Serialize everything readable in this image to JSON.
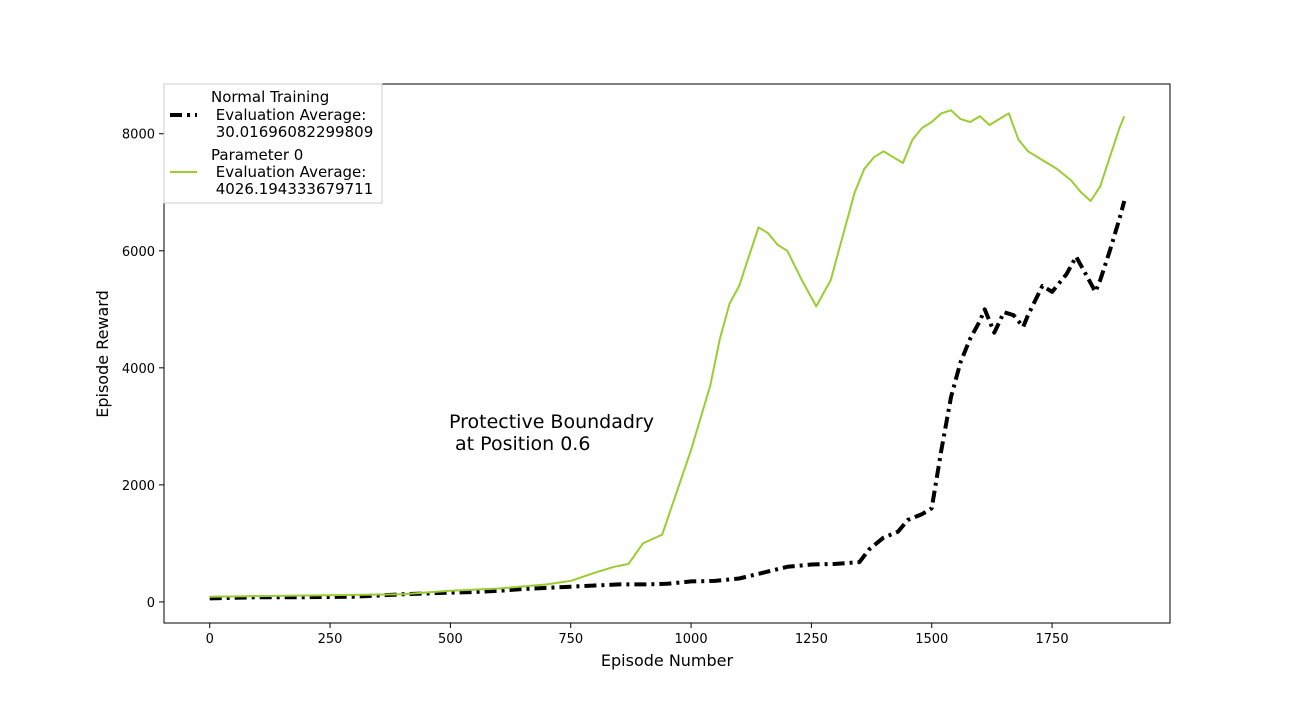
{
  "chart_data": {
    "type": "line",
    "xlabel": "Episode Number",
    "ylabel": "Episode Reward",
    "xlim": [
      -95,
      1995
    ],
    "ylim": [
      -360,
      8850
    ],
    "xticks": [
      0,
      250,
      500,
      750,
      1000,
      1250,
      1500,
      1750
    ],
    "yticks": [
      0,
      2000,
      4000,
      6000,
      8000
    ],
    "grid": false,
    "legend_position": "top-left",
    "annotation": {
      "lines": [
        "Protective Boundadry",
        " at Position 0.6"
      ],
      "x": 500,
      "y": 2650
    },
    "series": [
      {
        "name": "Normal Training\n Evaluation Average:\n 30.01696082299809",
        "legend_lines": [
          "Normal Training",
          " Evaluation Average:",
          " 30.01696082299809"
        ],
        "color": "#000000",
        "style": "dashdot",
        "x": [
          0,
          100,
          200,
          300,
          400,
          500,
          550,
          600,
          650,
          700,
          750,
          800,
          850,
          900,
          950,
          1000,
          1050,
          1100,
          1150,
          1200,
          1250,
          1300,
          1350,
          1370,
          1400,
          1430,
          1450,
          1480,
          1500,
          1520,
          1540,
          1560,
          1580,
          1600,
          1610,
          1630,
          1650,
          1670,
          1690,
          1700,
          1730,
          1750,
          1780,
          1800,
          1820,
          1840,
          1850,
          1870,
          1890,
          1900
        ],
        "y": [
          60,
          80,
          80,
          90,
          130,
          160,
          170,
          190,
          220,
          240,
          260,
          280,
          300,
          300,
          310,
          350,
          360,
          400,
          500,
          600,
          640,
          650,
          680,
          900,
          1100,
          1200,
          1400,
          1500,
          1600,
          2600,
          3500,
          4100,
          4500,
          4800,
          5000,
          4600,
          4950,
          4900,
          4700,
          4900,
          5400,
          5300,
          5600,
          5900,
          5600,
          5300,
          5500,
          6000,
          6550,
          6850
        ]
      },
      {
        "name": "Parameter 0\n Evaluation Average:\n 4026.194333679711",
        "legend_lines": [
          "Parameter 0",
          " Evaluation Average:",
          " 4026.194333679711"
        ],
        "color": "#9acd32",
        "style": "solid",
        "x": [
          0,
          100,
          200,
          300,
          400,
          500,
          600,
          700,
          750,
          800,
          840,
          870,
          900,
          940,
          1000,
          1040,
          1060,
          1080,
          1100,
          1120,
          1140,
          1160,
          1180,
          1200,
          1230,
          1260,
          1290,
          1320,
          1340,
          1360,
          1380,
          1400,
          1420,
          1440,
          1460,
          1480,
          1500,
          1520,
          1540,
          1560,
          1580,
          1600,
          1620,
          1640,
          1660,
          1680,
          1700,
          1730,
          1760,
          1790,
          1810,
          1830,
          1850,
          1870,
          1890,
          1900
        ],
        "y": [
          90,
          100,
          110,
          120,
          130,
          190,
          230,
          300,
          360,
          500,
          600,
          650,
          1000,
          1150,
          2600,
          3700,
          4500,
          5100,
          5400,
          5900,
          6400,
          6300,
          6100,
          6000,
          5500,
          5050,
          5500,
          6400,
          7000,
          7400,
          7600,
          7700,
          7600,
          7500,
          7900,
          8100,
          8200,
          8350,
          8400,
          8250,
          8200,
          8300,
          8150,
          8250,
          8350,
          7900,
          7700,
          7550,
          7400,
          7200,
          7000,
          6850,
          7100,
          7600,
          8100,
          8300
        ]
      }
    ]
  }
}
